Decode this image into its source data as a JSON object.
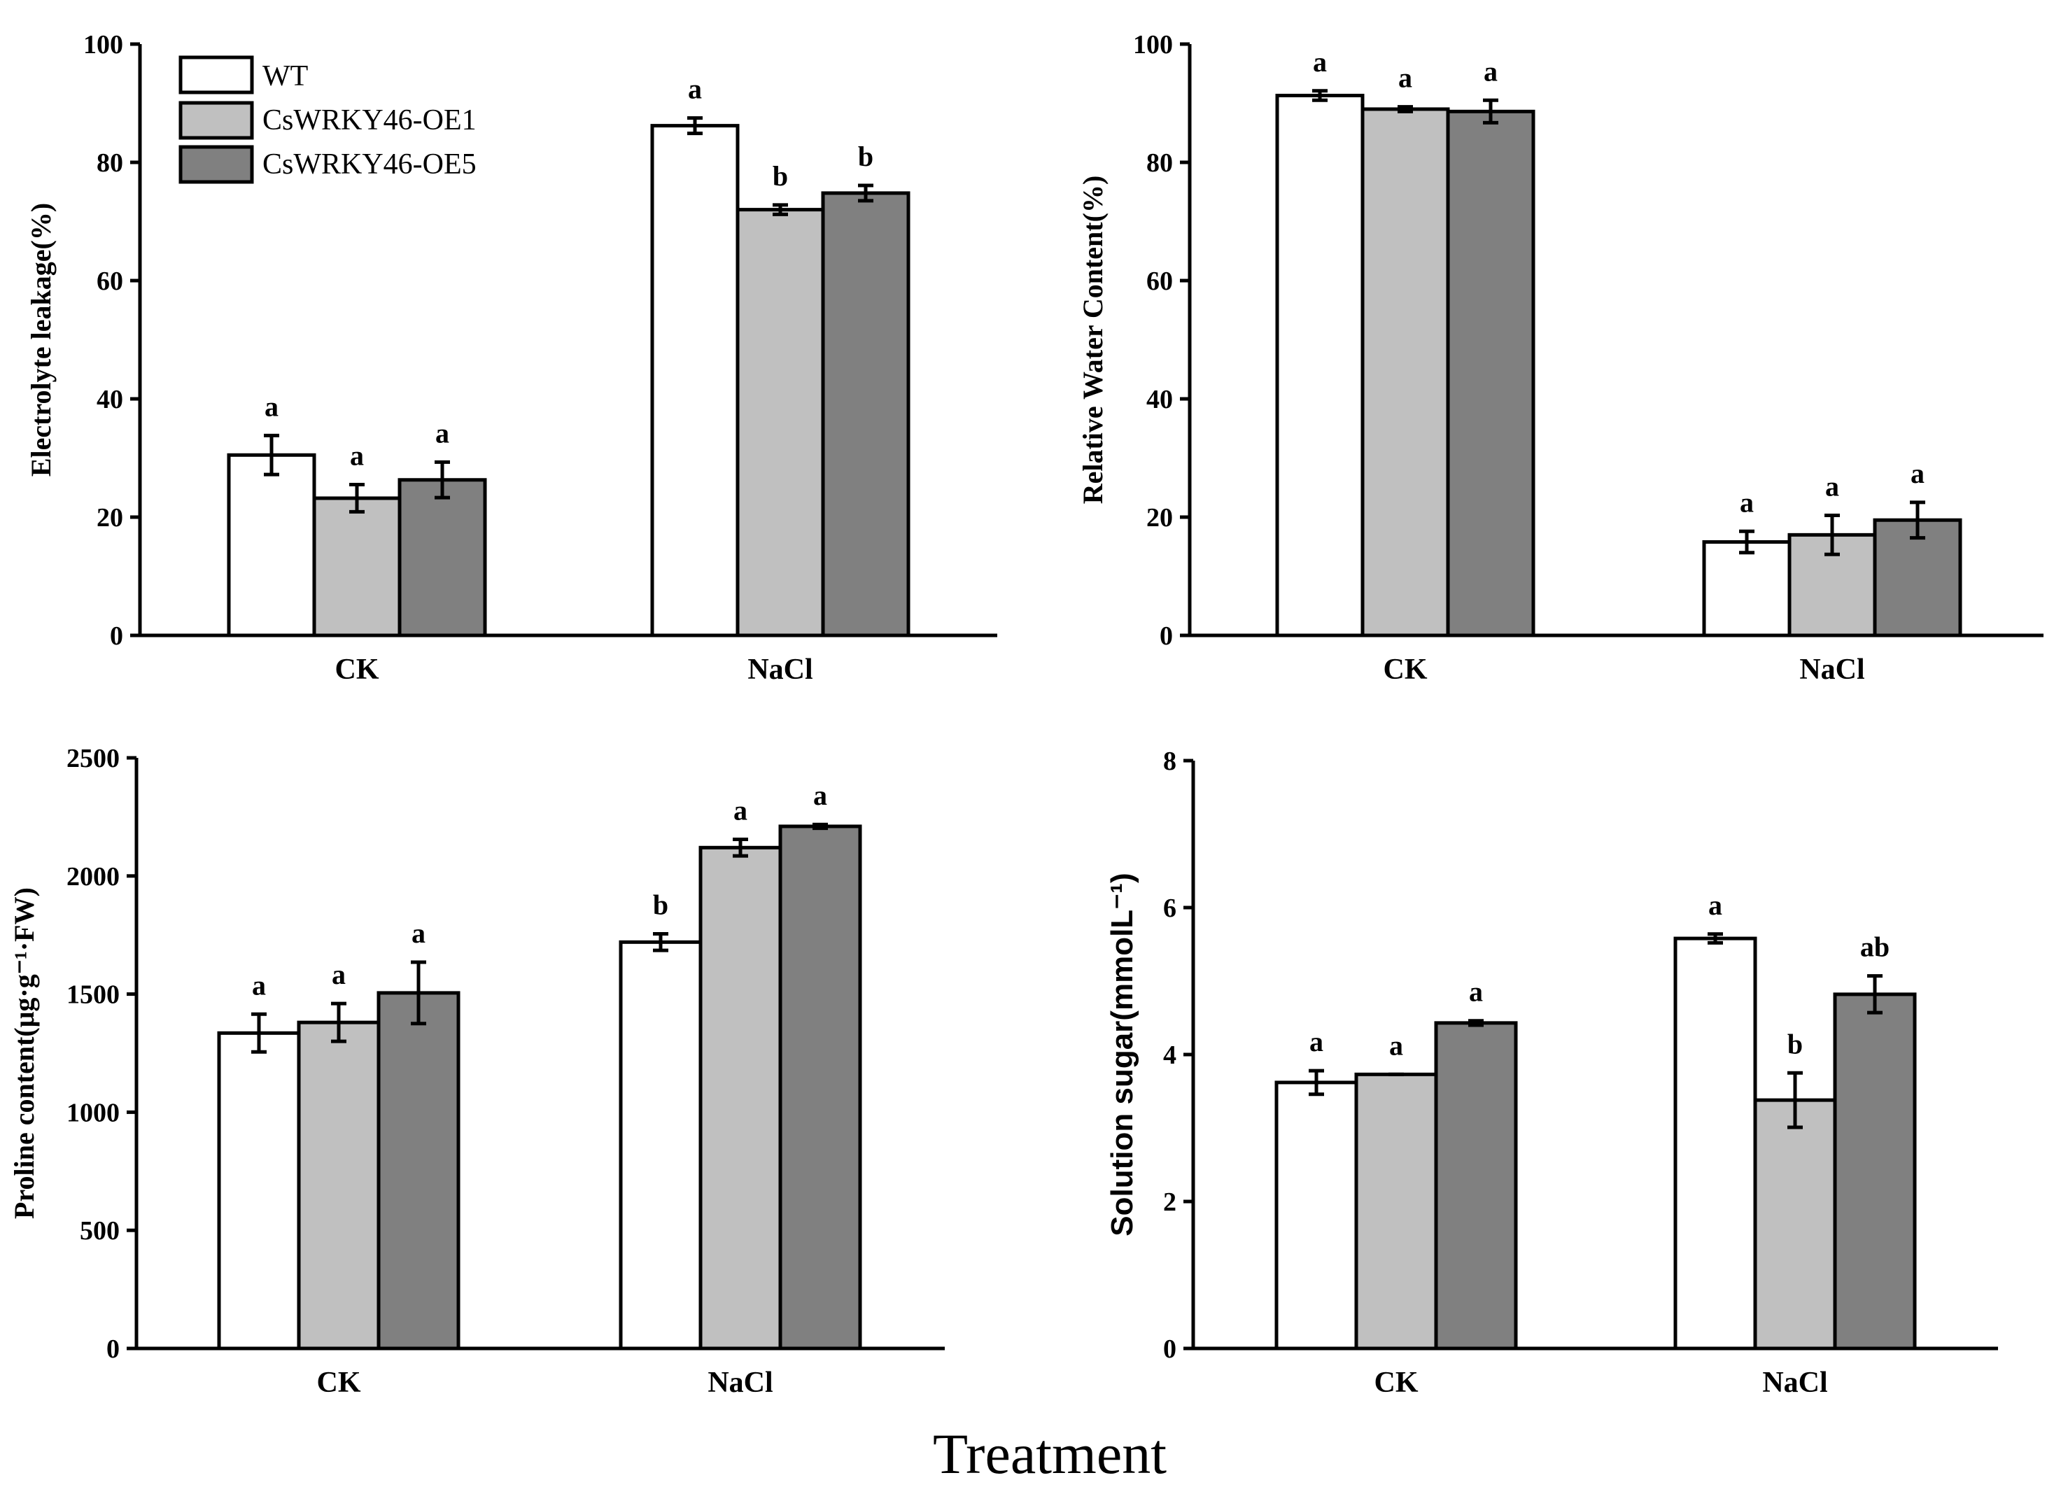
{
  "figure": {
    "common_xlabel": "Treatment",
    "legend": [
      {
        "label": "WT",
        "color": "#ffffff"
      },
      {
        "label": "CsWRKY46-OE1",
        "color": "#c0c0c0"
      },
      {
        "label": "CsWRKY46-OE5",
        "color": "#808080"
      }
    ]
  },
  "chart_data": [
    {
      "type": "bar",
      "ylabel": "Electrolyte leakage(%)",
      "ylim": [
        0,
        100
      ],
      "yticks": [
        0,
        20,
        40,
        60,
        80,
        100
      ],
      "categories": [
        "CK",
        "NaCl"
      ],
      "series": [
        {
          "name": "WT",
          "values": [
            30.5,
            86.2
          ],
          "errors": [
            3.3,
            1.3
          ],
          "letters": [
            "a",
            "a"
          ]
        },
        {
          "name": "CsWRKY46-OE1",
          "values": [
            23.2,
            72.0
          ],
          "errors": [
            2.3,
            0.8
          ],
          "letters": [
            "a",
            "b"
          ]
        },
        {
          "name": "CsWRKY46-OE5",
          "values": [
            26.3,
            74.8
          ],
          "errors": [
            3.0,
            1.3
          ],
          "letters": [
            "a",
            "b"
          ]
        }
      ]
    },
    {
      "type": "bar",
      "ylabel": "Relative Water Content(%)",
      "ylim": [
        0,
        100
      ],
      "yticks": [
        0,
        20,
        40,
        60,
        80,
        100
      ],
      "categories": [
        "CK",
        "NaCl"
      ],
      "series": [
        {
          "name": "WT",
          "values": [
            91.3,
            15.8
          ],
          "errors": [
            0.8,
            1.8
          ],
          "letters": [
            "a",
            "a"
          ]
        },
        {
          "name": "CsWRKY46-OE1",
          "values": [
            89.0,
            17.0
          ],
          "errors": [
            0.4,
            3.3
          ],
          "letters": [
            "a",
            "a"
          ]
        },
        {
          "name": "CsWRKY46-OE5",
          "values": [
            88.6,
            19.5
          ],
          "errors": [
            1.9,
            3.0
          ],
          "letters": [
            "a",
            "a"
          ]
        }
      ]
    },
    {
      "type": "bar",
      "ylabel": "Proline content(μg·g⁻¹·FW)",
      "ylim": [
        0,
        2500
      ],
      "yticks": [
        0,
        500,
        1000,
        1500,
        2000,
        2500
      ],
      "categories": [
        "CK",
        "NaCl"
      ],
      "series": [
        {
          "name": "WT",
          "values": [
            1335,
            1720
          ],
          "errors": [
            80,
            35
          ],
          "letters": [
            "a",
            "b"
          ]
        },
        {
          "name": "CsWRKY46-OE1",
          "values": [
            1380,
            2120
          ],
          "errors": [
            80,
            35
          ],
          "letters": [
            "a",
            "a"
          ]
        },
        {
          "name": "CsWRKY46-OE5",
          "values": [
            1505,
            2210
          ],
          "errors": [
            130,
            8
          ],
          "letters": [
            "a",
            "a"
          ]
        }
      ]
    },
    {
      "type": "bar",
      "ylabel": "Solution sugar(mmolL⁻¹)",
      "ylim": [
        0,
        8
      ],
      "yticks": [
        0,
        2,
        4,
        6,
        8
      ],
      "categories": [
        "CK",
        "NaCl"
      ],
      "series": [
        {
          "name": "WT",
          "values": [
            3.62,
            5.58
          ],
          "errors": [
            0.16,
            0.06
          ],
          "letters": [
            "a",
            "a"
          ]
        },
        {
          "name": "CsWRKY46-OE1",
          "values": [
            3.73,
            3.38
          ],
          "errors": [
            0.0,
            0.37
          ],
          "letters": [
            "a",
            "b"
          ]
        },
        {
          "name": "CsWRKY46-OE5",
          "values": [
            4.43,
            4.82
          ],
          "errors": [
            0.03,
            0.25
          ],
          "letters": [
            "a",
            "ab"
          ]
        }
      ]
    }
  ]
}
